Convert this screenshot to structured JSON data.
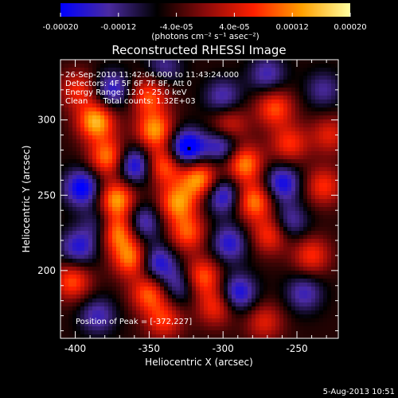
{
  "chart_data": {
    "type": "heatmap",
    "title": "Reconstructed RHESSI Image",
    "xlabel": "Heliocentric X (arcsec)",
    "ylabel": "Heliocentric Y (arcsec)",
    "xlim": [
      -410,
      -222
    ],
    "ylim": [
      155,
      340
    ],
    "x_ticks": [
      -400,
      -350,
      -300,
      -250
    ],
    "y_ticks": [
      200,
      250,
      300
    ],
    "x_tick_labels": [
      "-400",
      "-350",
      "-300",
      "-250"
    ],
    "y_tick_labels": [
      "200",
      "250",
      "300"
    ],
    "colorbar": {
      "range": [
        -0.0002,
        0.0002
      ],
      "ticks": [
        -0.0002,
        -0.00012,
        -4e-05,
        4e-05,
        0.00012,
        0.0002
      ],
      "tick_labels": [
        "-0.00020",
        "-0.00012",
        "-4.0e-05",
        "4.0e-05",
        "0.00012",
        "0.00020"
      ],
      "unit_label": "(photons cm⁻² s⁻¹ asec⁻²)",
      "colors": [
        "#0000ff",
        "#4a2aa0",
        "#000000",
        "#8a0a0a",
        "#ff1f00",
        "#ffa000",
        "#ffffa0"
      ]
    },
    "annotations": [
      "26-Sep-2010 11:42:04.000 to 11:43:24.000",
      "Detectors: 4F 5F 6F 7F 8F, Att 0",
      "Energy Range: 12.0 - 25.0 keV",
      "Clean      Total counts: 1.32E+03"
    ],
    "peak_label": "Position of Peak = [-372,227]",
    "peak_position": [
      -372,
      227
    ],
    "marker_position": [
      -323,
      281
    ],
    "blobs": [
      {
        "x": -386,
        "y": 299,
        "v": 1.0
      },
      {
        "x": -378,
        "y": 275,
        "v": 0.85
      },
      {
        "x": -372,
        "y": 247,
        "v": 0.95
      },
      {
        "x": -372,
        "y": 226,
        "v": 1.0
      },
      {
        "x": -362,
        "y": 208,
        "v": 0.85
      },
      {
        "x": -350,
        "y": 185,
        "v": 0.75
      },
      {
        "x": -340,
        "y": 167,
        "v": 0.6
      },
      {
        "x": -350,
        "y": 316,
        "v": 0.7
      },
      {
        "x": -346,
        "y": 293,
        "v": 0.9
      },
      {
        "x": -340,
        "y": 270,
        "v": 0.8
      },
      {
        "x": -331,
        "y": 245,
        "v": 0.85
      },
      {
        "x": -324,
        "y": 225,
        "v": 0.7
      },
      {
        "x": -314,
        "y": 196,
        "v": 0.75
      },
      {
        "x": -305,
        "y": 176,
        "v": 0.6
      },
      {
        "x": -316,
        "y": 261,
        "v": 0.95
      },
      {
        "x": -296,
        "y": 296,
        "v": 0.6
      },
      {
        "x": -286,
        "y": 271,
        "v": 0.9
      },
      {
        "x": -279,
        "y": 246,
        "v": 0.85
      },
      {
        "x": -268,
        "y": 224,
        "v": 0.65
      },
      {
        "x": -265,
        "y": 308,
        "v": 0.7
      },
      {
        "x": -255,
        "y": 284,
        "v": 0.6
      },
      {
        "x": -232,
        "y": 256,
        "v": 0.6
      },
      {
        "x": -240,
        "y": 210,
        "v": 0.6
      },
      {
        "x": -402,
        "y": 193,
        "v": 0.7
      },
      {
        "x": -398,
        "y": 320,
        "v": 0.55
      },
      {
        "x": -272,
        "y": 166,
        "v": 0.5
      },
      {
        "x": -228,
        "y": 290,
        "v": 0.5
      }
    ],
    "negatives": [
      {
        "x": -325,
        "y": 281,
        "v": -1.0
      },
      {
        "x": -395,
        "y": 255,
        "v": -0.8
      },
      {
        "x": -398,
        "y": 215,
        "v": -0.6
      },
      {
        "x": -360,
        "y": 270,
        "v": -0.8
      },
      {
        "x": -355,
        "y": 232,
        "v": -0.6
      },
      {
        "x": -345,
        "y": 205,
        "v": -0.7
      },
      {
        "x": -330,
        "y": 190,
        "v": -0.5
      },
      {
        "x": -300,
        "y": 250,
        "v": -0.7
      },
      {
        "x": -296,
        "y": 218,
        "v": -0.6
      },
      {
        "x": -290,
        "y": 185,
        "v": -0.7
      },
      {
        "x": -300,
        "y": 283,
        "v": -0.7
      },
      {
        "x": -300,
        "y": 315,
        "v": -0.5
      },
      {
        "x": -260,
        "y": 258,
        "v": -0.7
      },
      {
        "x": -255,
        "y": 232,
        "v": -0.5
      },
      {
        "x": -245,
        "y": 185,
        "v": -0.5
      },
      {
        "x": -375,
        "y": 320,
        "v": -0.6
      },
      {
        "x": -340,
        "y": 335,
        "v": -0.4
      },
      {
        "x": -232,
        "y": 320,
        "v": -0.4
      },
      {
        "x": -385,
        "y": 170,
        "v": -0.5
      },
      {
        "x": -270,
        "y": 330,
        "v": -0.5
      },
      {
        "x": -382,
        "y": 230,
        "v": -0.5
      }
    ]
  },
  "footer_date": "5-Aug-2013 10:51"
}
